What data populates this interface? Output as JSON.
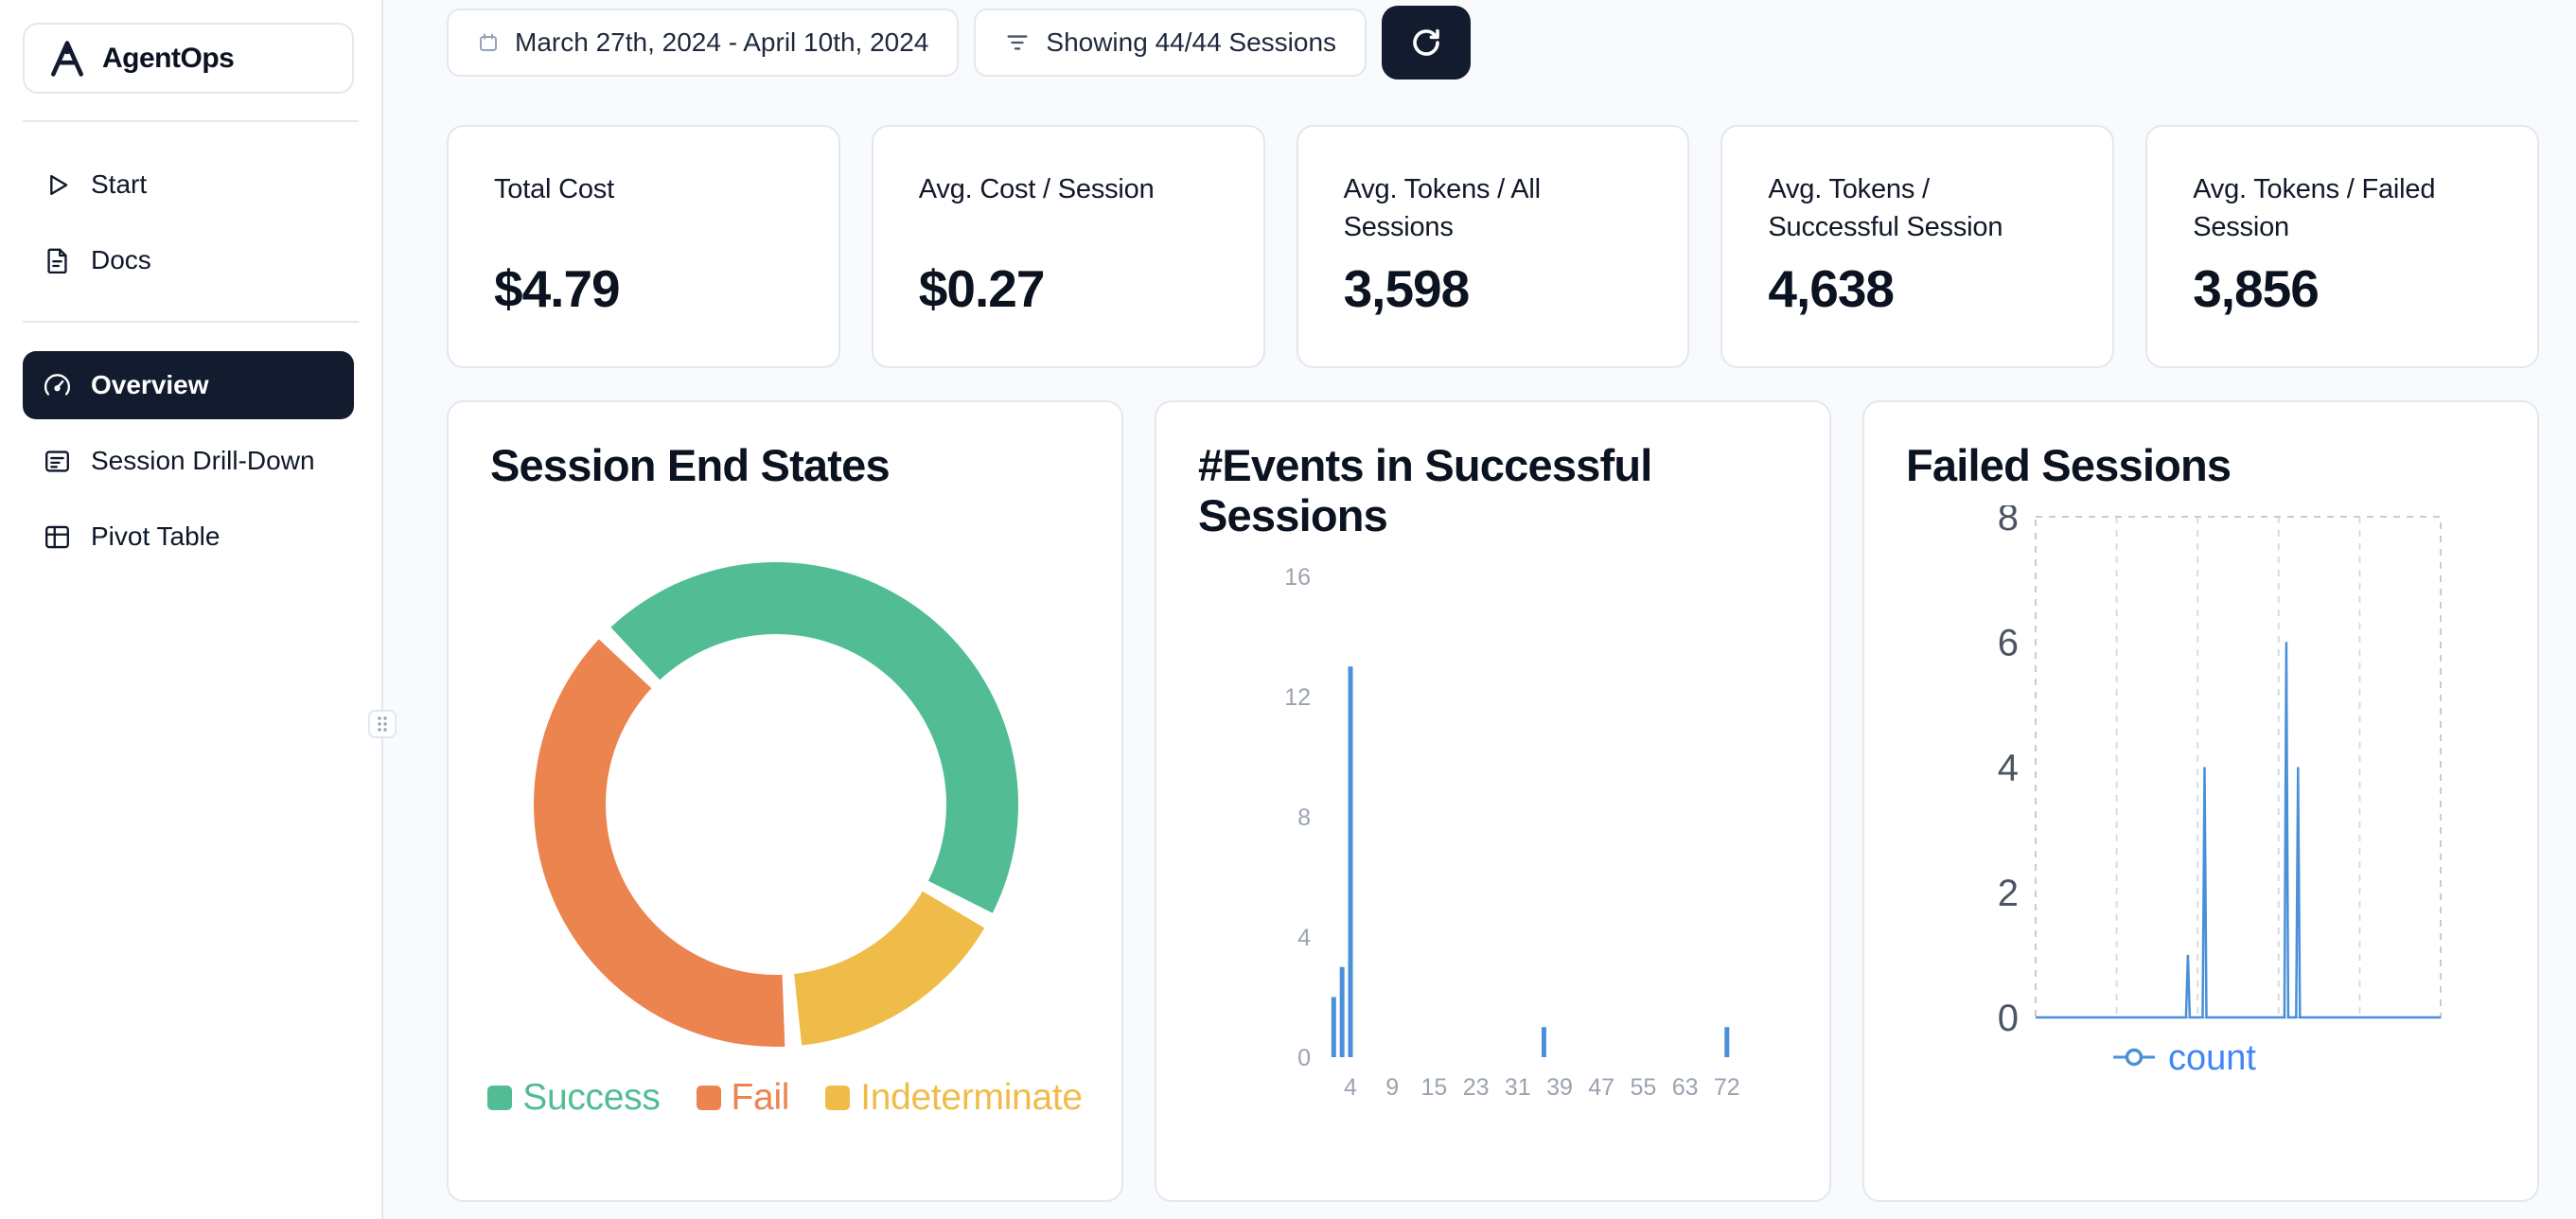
{
  "app": {
    "name": "AgentOps"
  },
  "sidebar": {
    "items": [
      {
        "label": "Start",
        "icon": "play-icon"
      },
      {
        "label": "Docs",
        "icon": "document-icon"
      },
      {
        "label": "Overview",
        "icon": "gauge-icon",
        "active": true
      },
      {
        "label": "Session Drill-Down",
        "icon": "drilldown-icon"
      },
      {
        "label": "Pivot Table",
        "icon": "pivot-table-icon"
      }
    ]
  },
  "toolbar": {
    "date_range": "March 27th, 2024 - April 10th, 2024",
    "sessions_filter": "Showing 44/44 Sessions",
    "refresh_icon": "refresh-icon"
  },
  "stats": [
    {
      "label": "Total Cost",
      "value": "$4.79"
    },
    {
      "label": "Avg. Cost / Session",
      "value": "$0.27"
    },
    {
      "label": "Avg. Tokens / All Sessions",
      "value": "3,598"
    },
    {
      "label": "Avg. Tokens / Successful Session",
      "value": "4,638"
    },
    {
      "label": "Avg. Tokens / Failed Session",
      "value": "3,856"
    }
  ],
  "colors": {
    "accent_dark": "#131c2e",
    "background": "#f8fafc",
    "card_border": "#e2e8f0",
    "success_green": "#52BD94",
    "fail_orange": "#EC8450",
    "indeterminate_yellow": "#F0BC49",
    "bar_blue": "#4a90d9",
    "count_label_blue": "#4285f4",
    "axis_gray": "#9aa3af"
  },
  "chart_data": [
    {
      "type": "pie",
      "donut": true,
      "title": "Session End States",
      "slices": [
        {
          "label": "Success",
          "value": 20,
          "color": "#52BD94"
        },
        {
          "label": "Fail",
          "value": 17,
          "color": "#EC8450"
        },
        {
          "label": "Indeterminate",
          "value": 7,
          "color": "#F0BC49"
        }
      ],
      "draw_order": [
        0,
        2,
        1
      ],
      "start_angle_deg": -45,
      "pad_angle_deg": 4,
      "legend_position": "bottom"
    },
    {
      "type": "bar",
      "title": "#Events in Successful Sessions",
      "xlabel": "",
      "ylabel": "",
      "ylim": [
        0,
        16
      ],
      "y_ticks": [
        0,
        4,
        8,
        12,
        16
      ],
      "x_tick_labels": [
        "4",
        "9",
        "15",
        "23",
        "31",
        "39",
        "47",
        "55",
        "63",
        "72"
      ],
      "bars": [
        {
          "x": 2,
          "count": 2
        },
        {
          "x": 3,
          "count": 3
        },
        {
          "x": 4,
          "count": 13
        },
        {
          "x": 36,
          "count": 1
        },
        {
          "x": 72,
          "count": 1
        }
      ],
      "bar_color": "#4a90d9",
      "grid": "off"
    },
    {
      "type": "line",
      "title": "Failed Sessions",
      "series": [
        {
          "name": "count",
          "color": "#4a90d9"
        }
      ],
      "ylim": [
        0,
        8
      ],
      "y_ticks": [
        0,
        2,
        4,
        6,
        8
      ],
      "spikes": [
        {
          "x_fraction": 0.376,
          "count": 1
        },
        {
          "x_fraction": 0.417,
          "count": 4
        },
        {
          "x_fraction": 0.619,
          "count": 6
        },
        {
          "x_fraction": 0.648,
          "count": 4
        }
      ],
      "grid": "dashed-vertical",
      "legend_position": "bottom",
      "legend_label": "count"
    }
  ]
}
